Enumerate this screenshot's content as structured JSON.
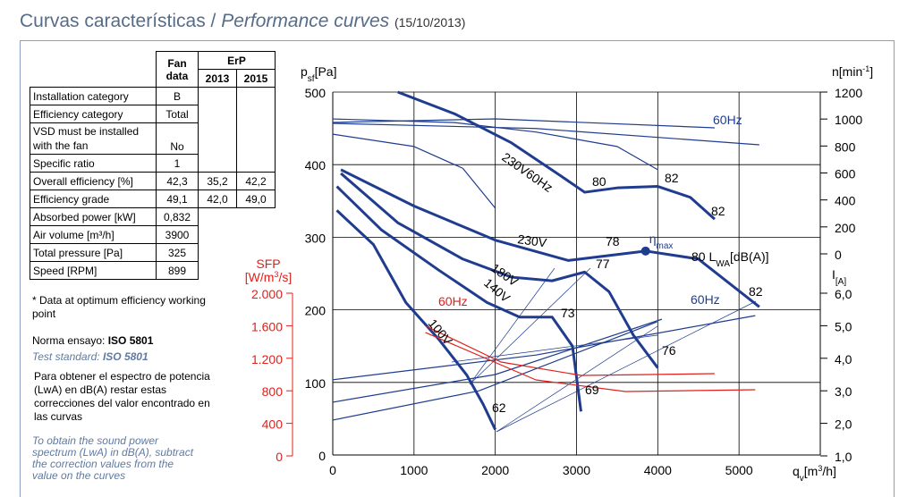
{
  "header": {
    "title": "Curvas características / ",
    "title_italic": "Performance curves",
    "date": "(15/10/2013)"
  },
  "table": {
    "head": [
      "Fan data",
      "ErP",
      "2013",
      "2015"
    ],
    "rows": [
      [
        "Installation category",
        "B"
      ],
      [
        "Efficiency category",
        "Total"
      ],
      [
        "VSD must be installed with the fan",
        "No"
      ],
      [
        "Specific ratio",
        "1"
      ],
      [
        "Overall efficiency [%]",
        "42,3",
        "35,2",
        "42,2"
      ],
      [
        "Efficiency grade",
        "49,1",
        "42,0",
        "49,0"
      ],
      [
        "Absorbed power [kW]",
        "0,832"
      ],
      [
        "Air volume [m³/h]",
        "3900"
      ],
      [
        "Total pressure [Pa]",
        "325"
      ],
      [
        "Speed [RPM]",
        "899"
      ]
    ]
  },
  "notes": {
    "optimum": "* Data at optimum efficiency working point",
    "norma_label": "Norma ensayo: ",
    "norma": "ISO 5801",
    "standard_label": "Test standard: ",
    "standard": "ISO 5801",
    "es": "Para obtener el espectro de potencia (LwA) en dB(A) restar estas correcciones del valor encontrado en las curvas",
    "en": "To obtain the sound power spectrum (LwA) in dB(A), subtract the correction values from the value on the curves"
  },
  "chart_data": {
    "type": "line",
    "x_label": {
      "main": "q",
      "sub": "v",
      "unit": "[m",
      "sup": "3",
      "end": "/h]"
    },
    "y_label": {
      "main": "p",
      "sub": "sf",
      "unit": "[Pa]"
    },
    "n_label": {
      "main": "n[min",
      "sup": "-1",
      "end": "]"
    },
    "i_label": {
      "main": "I",
      "sub": "[A]"
    },
    "sfp_label": {
      "main": "SFP",
      "unit": "[W/m",
      "sup": "3",
      "end": "/s]"
    },
    "xlim": [
      0,
      6000
    ],
    "xticks": [
      0,
      1000,
      2000,
      3000,
      4000,
      5000
    ],
    "ylim": [
      0,
      500
    ],
    "yticks": [
      0,
      100,
      200,
      300,
      400,
      500
    ],
    "nlim": [
      0,
      1200
    ],
    "nticks": [
      0,
      200,
      400,
      600,
      800,
      1000,
      1200
    ],
    "ilim": [
      1,
      6
    ],
    "iticks": [
      {
        "value": 1,
        "label": "1,0"
      },
      {
        "value": 2,
        "label": "2,0"
      },
      {
        "value": 3,
        "label": "3,0"
      },
      {
        "value": 4,
        "label": "4,0"
      },
      {
        "value": 5,
        "label": "5,0"
      },
      {
        "value": 6,
        "label": "6,0"
      }
    ],
    "sfplim": [
      0,
      2000
    ],
    "sfpticks": [
      0,
      400,
      800,
      {
        "value": 1200,
        "label": "1.200"
      },
      {
        "value": 1600,
        "label": "1.600"
      },
      {
        "value": 2000,
        "label": "2.000"
      }
    ],
    "grid": true,
    "series": [
      {
        "name": "230V",
        "color": "#1f3c8f",
        "axis": "y",
        "width": 3,
        "x": [
          100,
          1000,
          2000,
          2900,
          3850,
          4500,
          5250
        ],
        "values": [
          393,
          343,
          296,
          268,
          281,
          270,
          204
        ]
      },
      {
        "name": "180V",
        "color": "#1f3c8f",
        "axis": "y",
        "width": 3,
        "x": [
          100,
          800,
          1600,
          2200,
          2700,
          3100,
          3400,
          3700,
          4000
        ],
        "values": [
          388,
          320,
          270,
          245,
          240,
          252,
          225,
          165,
          120
        ]
      },
      {
        "name": "140V",
        "color": "#1f3c8f",
        "axis": "y",
        "width": 3,
        "x": [
          50,
          600,
          1300,
          1900,
          2300,
          2700,
          2950,
          3055
        ],
        "values": [
          370,
          310,
          255,
          210,
          190,
          190,
          150,
          60
        ]
      },
      {
        "name": "100V",
        "color": "#1f3c8f",
        "axis": "y",
        "width": 3,
        "x": [
          50,
          500,
          900,
          1300,
          1650,
          1850,
          2000
        ],
        "values": [
          337,
          290,
          210,
          160,
          110,
          70,
          35
        ]
      },
      {
        "name": "230V60Hz",
        "color": "#1f3c8f",
        "axis": "y",
        "width": 3,
        "x": [
          800,
          1500,
          2200,
          2800,
          3100,
          3500,
          4000,
          4400,
          4700
        ],
        "values": [
          500,
          470,
          430,
          385,
          362,
          368,
          370,
          355,
          325
        ]
      },
      {
        "color": "#1f3c8f",
        "axis": "y",
        "width": 1.2,
        "x": [
          0,
          1000,
          1600,
          2000
        ],
        "values": [
          442,
          425,
          395,
          340
        ]
      },
      {
        "color": "#1f3c8f",
        "axis": "y",
        "width": 1.2,
        "x": [
          0,
          1500,
          2500,
          3500,
          4000
        ],
        "values": [
          463,
          458,
          445,
          425,
          393
        ]
      },
      {
        "color": "#1f3c8f",
        "axis": "n",
        "width": 1.2,
        "x": [
          0,
          2000,
          4700
        ],
        "values": [
          975,
          1001,
          935
        ]
      },
      {
        "color": "#1f3c8f",
        "axis": "n",
        "width": 1.2,
        "x": [
          0,
          2500,
          5250
        ],
        "values": [
          968,
          930,
          809
        ]
      },
      {
        "color": "#1f3c8f",
        "axis": "i",
        "width": 1.2,
        "x": [
          0,
          2500,
          5200
        ],
        "values": [
          3.34,
          4.1,
          5.31
        ]
      },
      {
        "color": "#1f3c8f",
        "axis": "i",
        "width": 1.2,
        "x": [
          0,
          2000,
          4050
        ],
        "values": [
          2.65,
          3.5,
          5.2
        ]
      },
      {
        "color": "#1f3c8f",
        "axis": "i",
        "width": 1.2,
        "x": [
          0,
          1800,
          3990
        ],
        "values": [
          2.1,
          3.0,
          5.12
        ]
      },
      {
        "color": "#e0201b",
        "axis": "sfp",
        "width": 1.2,
        "x": [
          1150,
          2070,
          3060,
          4700
        ],
        "values": [
          1594,
          1154,
          989,
          1011
        ]
      },
      {
        "color": "#e0201b",
        "axis": "sfp",
        "width": 1.2,
        "x": [
          1140,
          2500,
          3600,
          5200
        ],
        "values": [
          1517,
          934,
          791,
          813
        ]
      }
    ],
    "eta_max": {
      "label": "η",
      "sub": "max",
      "x": 3850,
      "y": 281
    },
    "annotations": [
      "80",
      "82",
      "82",
      "78",
      "77",
      "73",
      "62",
      "69",
      "76",
      "82",
      "60Hz",
      "60Hz",
      "60Hz"
    ],
    "lwa_label": {
      "main": "80 L",
      "sub": "WA",
      "end": "[dB(A)]"
    }
  }
}
